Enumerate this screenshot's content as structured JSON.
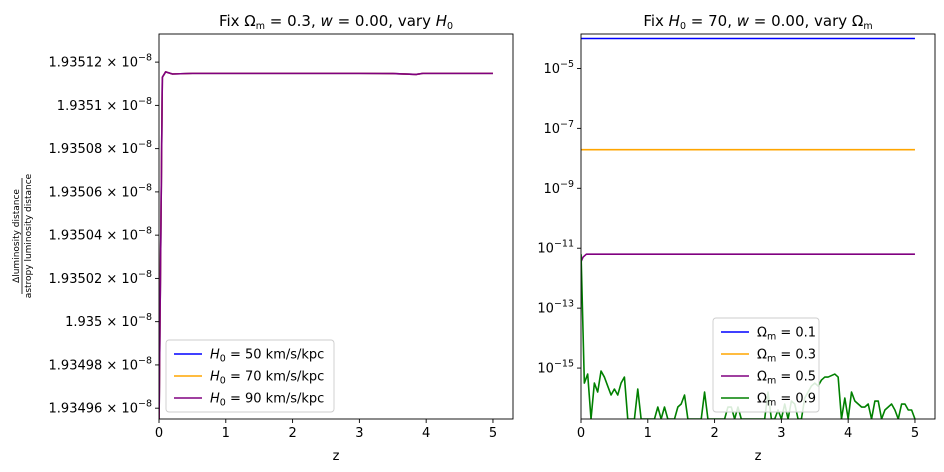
{
  "chart_data": [
    {
      "type": "line",
      "title": "Fix Ω_m = 0.3, w = 0.00, vary H_0",
      "title_parts": {
        "a": "Fix Ω",
        "a_sub": "m",
        "b": " = 0.3, ",
        "c": "w",
        "d": " = 0.00, vary ",
        "e": "H",
        "e_sub": "0"
      },
      "xlabel": "z",
      "ylabel": "Δluminosity distance / astropy luminosity distance",
      "ylabel_num": "Δluminosity distance",
      "ylabel_den": "astropy luminosity distance",
      "xlim": [
        0,
        5.3
      ],
      "ylim": [
        1.934955e-08,
        1.935133e-08
      ],
      "yscale": "linear",
      "grid": false,
      "legend": "lower-left",
      "xticks": [
        0,
        1,
        2,
        3,
        4,
        5
      ],
      "xtick_labels": [
        "0",
        "1",
        "2",
        "3",
        "4",
        "5"
      ],
      "yticks": [
        {
          "value": 1.93496e-08,
          "mantissa": "1.93496",
          "exp": "−8"
        },
        {
          "value": 1.93498e-08,
          "mantissa": "1.93498",
          "exp": "−8"
        },
        {
          "value": 1.935e-08,
          "mantissa": "1.935",
          "exp": "−8"
        },
        {
          "value": 1.93502e-08,
          "mantissa": "1.93502",
          "exp": "−8"
        },
        {
          "value": 1.93504e-08,
          "mantissa": "1.93504",
          "exp": "−8"
        },
        {
          "value": 1.93506e-08,
          "mantissa": "1.93506",
          "exp": "−8"
        },
        {
          "value": 1.93508e-08,
          "mantissa": "1.93508",
          "exp": "−8"
        },
        {
          "value": 1.9351e-08,
          "mantissa": "1.9351",
          "exp": "−8"
        },
        {
          "value": 1.93512e-08,
          "mantissa": "1.93512",
          "exp": "−8"
        }
      ],
      "series": [
        {
          "name": "H0 = 50 km/s/kpc",
          "label_parts": {
            "sym": "H",
            "sub": "0",
            "rest": " = 50 km/s/kpc"
          },
          "color": "#0000ff",
          "x": [
            0.001,
            0.05,
            0.1,
            0.2,
            0.5,
            1.0,
            1.5,
            2.0,
            2.5,
            3.0,
            3.5,
            3.85,
            3.95,
            4.5,
            5.0
          ],
          "y": [
            1.934955e-08,
            1.935113e-08,
            1.9351155e-08,
            1.9351145e-08,
            1.9351148e-08,
            1.9351148e-08,
            1.9351148e-08,
            1.9351148e-08,
            1.9351148e-08,
            1.9351148e-08,
            1.9351147e-08,
            1.9351143e-08,
            1.9351148e-08,
            1.9351148e-08,
            1.9351148e-08
          ]
        },
        {
          "name": "H0 = 70 km/s/kpc",
          "label_parts": {
            "sym": "H",
            "sub": "0",
            "rest": " = 70 km/s/kpc"
          },
          "color": "#ffa500",
          "x": [
            0.001,
            0.05,
            0.1,
            0.2,
            0.5,
            1.0,
            1.5,
            2.0,
            2.5,
            3.0,
            3.5,
            3.85,
            3.95,
            4.5,
            5.0
          ],
          "y": [
            1.934955e-08,
            1.935113e-08,
            1.9351155e-08,
            1.9351145e-08,
            1.9351148e-08,
            1.9351148e-08,
            1.9351148e-08,
            1.9351148e-08,
            1.9351148e-08,
            1.9351148e-08,
            1.9351147e-08,
            1.9351143e-08,
            1.9351148e-08,
            1.9351148e-08,
            1.9351148e-08
          ]
        },
        {
          "name": "H0 = 90 km/s/kpc",
          "label_parts": {
            "sym": "H",
            "sub": "0",
            "rest": " = 90 km/s/kpc"
          },
          "color": "#800080",
          "x": [
            0.001,
            0.05,
            0.1,
            0.2,
            0.5,
            1.0,
            1.5,
            2.0,
            2.5,
            3.0,
            3.5,
            3.85,
            3.95,
            4.5,
            5.0
          ],
          "y": [
            1.934955e-08,
            1.935113e-08,
            1.9351155e-08,
            1.9351145e-08,
            1.9351148e-08,
            1.9351148e-08,
            1.9351148e-08,
            1.9351148e-08,
            1.9351148e-08,
            1.9351148e-08,
            1.9351147e-08,
            1.9351143e-08,
            1.9351148e-08,
            1.9351148e-08,
            1.9351148e-08
          ]
        }
      ]
    },
    {
      "type": "line",
      "title": "Fix H_0 = 70, w = 0.00, vary Ω_m",
      "title_parts": {
        "a": "Fix ",
        "a2": "H",
        "a_sub": "0",
        "b": " = 70, ",
        "c": "w",
        "d": " = 0.00, vary Ω",
        "e_sub": "m"
      },
      "xlabel": "z",
      "ylabel": "",
      "xlim": [
        0,
        5.3
      ],
      "ylim_log10": [
        -16.7,
        -3.85
      ],
      "yscale": "log",
      "grid": false,
      "legend": "lower-center",
      "xticks": [
        0,
        1,
        2,
        3,
        4,
        5
      ],
      "xtick_labels": [
        "0",
        "1",
        "2",
        "3",
        "4",
        "5"
      ],
      "yticks": [
        {
          "exp10": -5,
          "base": "10",
          "exp": "−5"
        },
        {
          "exp10": -7,
          "base": "10",
          "exp": "−7"
        },
        {
          "exp10": -9,
          "base": "10",
          "exp": "−9"
        },
        {
          "exp10": -11,
          "base": "10",
          "exp": "−11"
        },
        {
          "exp10": -13,
          "base": "10",
          "exp": "−13"
        },
        {
          "exp10": -15,
          "base": "10",
          "exp": "−15"
        }
      ],
      "series": [
        {
          "name": "Ωm = 0.1",
          "label_parts": {
            "sym": "Ω",
            "sub": "m",
            "rest": " = 0.1"
          },
          "color": "#0000ff",
          "x": [
            0.001,
            0.5,
            1.0,
            2.0,
            3.0,
            4.0,
            5.0
          ],
          "log10y": [
            -4.0,
            -4.0,
            -4.0,
            -4.0,
            -4.0,
            -4.0,
            -4.0
          ]
        },
        {
          "name": "Ωm = 0.3",
          "label_parts": {
            "sym": "Ω",
            "sub": "m",
            "rest": " = 0.3"
          },
          "color": "#ffa500",
          "x": [
            0.001,
            0.5,
            1.0,
            2.0,
            3.0,
            4.0,
            5.0
          ],
          "log10y": [
            -7.71,
            -7.71,
            -7.71,
            -7.71,
            -7.71,
            -7.71,
            -7.71
          ]
        },
        {
          "name": "Ωm = 0.5",
          "label_parts": {
            "sym": "Ω",
            "sub": "m",
            "rest": " = 0.5"
          },
          "color": "#800080",
          "x": [
            0.001,
            0.03,
            0.08,
            0.15,
            0.5,
            1.0,
            2.0,
            3.0,
            4.0,
            5.0
          ],
          "log10y": [
            -11.45,
            -11.3,
            -11.2,
            -11.2,
            -11.2,
            -11.2,
            -11.2,
            -11.2,
            -11.2,
            -11.2
          ]
        },
        {
          "name": "Ωm = 0.9",
          "label_parts": {
            "sym": "Ω",
            "sub": "m",
            "rest": " = 0.9"
          },
          "color": "#008000",
          "x": [
            0.001,
            0.05,
            0.1,
            0.15,
            0.2,
            0.25,
            0.3,
            0.35,
            0.4,
            0.45,
            0.5,
            0.55,
            0.6,
            0.65,
            0.7,
            0.75,
            0.8,
            0.85,
            0.9,
            0.95,
            1.0,
            1.05,
            1.1,
            1.15,
            1.2,
            1.25,
            1.3,
            1.35,
            1.4,
            1.45,
            1.5,
            1.55,
            1.6,
            1.65,
            1.7,
            1.75,
            1.8,
            1.85,
            1.9,
            1.95,
            2.0,
            2.05,
            2.1,
            2.15,
            2.2,
            2.25,
            2.3,
            2.35,
            2.4,
            2.45,
            2.5,
            2.55,
            2.6,
            2.65,
            2.7,
            2.75,
            2.8,
            2.85,
            2.9,
            2.95,
            3.0,
            3.05,
            3.1,
            3.15,
            3.2,
            3.25,
            3.3,
            3.35,
            3.4,
            3.45,
            3.5,
            3.55,
            3.6,
            3.65,
            3.7,
            3.75,
            3.8,
            3.85,
            3.9,
            3.95,
            4.0,
            4.05,
            4.1,
            4.15,
            4.2,
            4.25,
            4.3,
            4.35,
            4.4,
            4.45,
            4.5,
            4.55,
            4.6,
            4.65,
            4.7,
            4.75,
            4.8,
            4.85,
            4.9,
            4.95,
            5.0
          ],
          "log10y": [
            -11.2,
            -15.5,
            -15.2,
            -16.7,
            -15.5,
            -15.8,
            -15.1,
            -15.3,
            -15.6,
            -15.9,
            -15.7,
            -15.9,
            -15.5,
            -15.3,
            -16.7,
            -16.7,
            -16.7,
            -15.7,
            -16.7,
            -16.7,
            -16.7,
            -16.7,
            -16.7,
            -16.3,
            -16.7,
            -16.3,
            -16.7,
            -16.7,
            -16.7,
            -16.3,
            -16.2,
            -15.9,
            -16.7,
            -16.7,
            -16.7,
            -16.7,
            -16.7,
            -15.8,
            -16.7,
            -16.7,
            -16.7,
            -16.7,
            -16.7,
            -16.7,
            -16.3,
            -16.3,
            -16.7,
            -16.3,
            -16.7,
            -16.7,
            -16.7,
            -16.7,
            -16.7,
            -16.7,
            -16.7,
            -16.7,
            -15.8,
            -16.7,
            -16.7,
            -16.4,
            -16.7,
            -16.2,
            -16.7,
            -16.1,
            -16.2,
            -16.7,
            -16.7,
            -16.0,
            -15.8,
            -15.6,
            -15.5,
            -15.6,
            -15.4,
            -15.3,
            -15.3,
            -15.25,
            -15.2,
            -15.3,
            -16.7,
            -16.0,
            -16.7,
            -15.8,
            -16.1,
            -16.2,
            -16.3,
            -16.3,
            -16.2,
            -16.7,
            -16.1,
            -16.1,
            -16.7,
            -16.4,
            -16.3,
            -16.2,
            -16.4,
            -16.7,
            -16.2,
            -16.2,
            -16.4,
            -16.4,
            -16.7
          ]
        }
      ]
    }
  ]
}
